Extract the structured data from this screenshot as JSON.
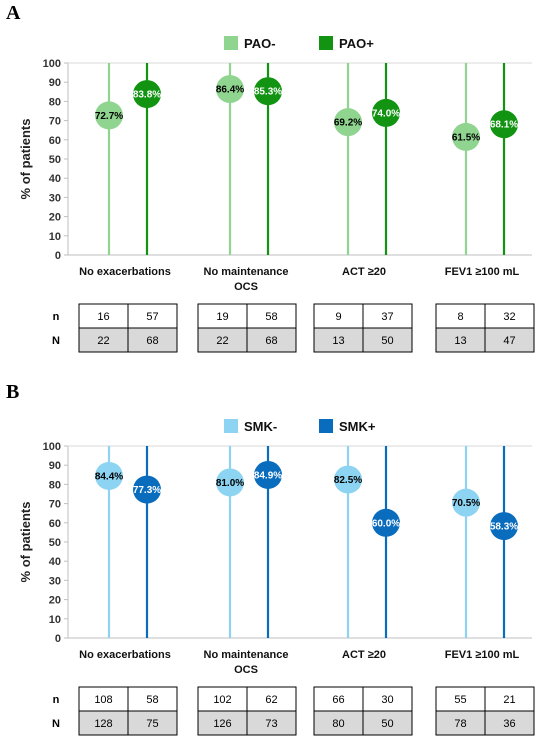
{
  "panels": [
    {
      "letter": "A",
      "legend": [
        {
          "name": "PAO-",
          "color": "#8fd48f"
        },
        {
          "name": "PAO+",
          "color": "#129412"
        }
      ],
      "table": {
        "row_labels": [
          "n",
          "N"
        ],
        "groups": [
          {
            "n": [
              "16",
              "57"
            ],
            "N": [
              "22",
              "68"
            ]
          },
          {
            "n": [
              "19",
              "58"
            ],
            "N": [
              "22",
              "68"
            ]
          },
          {
            "n": [
              "9",
              "37"
            ],
            "N": [
              "13",
              "50"
            ]
          },
          {
            "n": [
              "8",
              "32"
            ],
            "N": [
              "13",
              "47"
            ]
          }
        ]
      }
    },
    {
      "letter": "B",
      "legend": [
        {
          "name": "SMK-",
          "color": "#8dd3f2"
        },
        {
          "name": "SMK+",
          "color": "#0a6cbc"
        }
      ],
      "table": {
        "row_labels": [
          "n",
          "N"
        ],
        "groups": [
          {
            "n": [
              "108",
              "58"
            ],
            "N": [
              "128",
              "75"
            ]
          },
          {
            "n": [
              "102",
              "62"
            ],
            "N": [
              "126",
              "73"
            ]
          },
          {
            "n": [
              "66",
              "30"
            ],
            "N": [
              "80",
              "50"
            ]
          },
          {
            "n": [
              "55",
              "21"
            ],
            "N": [
              "78",
              "36"
            ]
          }
        ]
      }
    }
  ],
  "chart_data": [
    {
      "type": "scatter",
      "categories": [
        "No exacerbations",
        "No maintenance OCS",
        "ACT ≥20",
        "FEV1 ≥100 mL"
      ],
      "series": [
        {
          "name": "PAO-",
          "values": [
            72.7,
            86.4,
            69.2,
            61.5
          ],
          "labels": [
            "72.7%",
            "86.4%",
            "69.2%",
            "61.5%"
          ],
          "color": "#8fd48f",
          "label_color": "#000000"
        },
        {
          "name": "PAO+",
          "values": [
            83.8,
            85.3,
            74.0,
            68.1
          ],
          "labels": [
            "83.8%",
            "85.3%",
            "74.0%",
            "68.1%"
          ],
          "color": "#129412",
          "label_color": "#ffffff"
        }
      ],
      "ylabel": "% of patients",
      "ylim": [
        0,
        100
      ],
      "yticks": [
        "0",
        "10",
        "20",
        "30",
        "40",
        "50",
        "60",
        "70",
        "80",
        "90",
        "100"
      ],
      "grid": false,
      "legend_position": "top"
    },
    {
      "type": "scatter",
      "categories": [
        "No exacerbations",
        "No maintenance OCS",
        "ACT ≥20",
        "FEV1 ≥100 mL"
      ],
      "series": [
        {
          "name": "SMK-",
          "values": [
            84.4,
            81.0,
            82.5,
            70.5
          ],
          "labels": [
            "84.4%",
            "81.0%",
            "82.5%",
            "70.5%"
          ],
          "color": "#8dd3f2",
          "label_color": "#000000"
        },
        {
          "name": "SMK+",
          "values": [
            77.3,
            84.9,
            60.0,
            58.3
          ],
          "labels": [
            "77.3%",
            "84.9%",
            "60.0%",
            "58.3%"
          ],
          "color": "#0a6cbc",
          "label_color": "#ffffff"
        }
      ],
      "ylabel": "% of patients",
      "ylim": [
        0,
        100
      ],
      "yticks": [
        "0",
        "10",
        "20",
        "30",
        "40",
        "50",
        "60",
        "70",
        "80",
        "90",
        "100"
      ],
      "grid": false,
      "legend_position": "top"
    }
  ]
}
